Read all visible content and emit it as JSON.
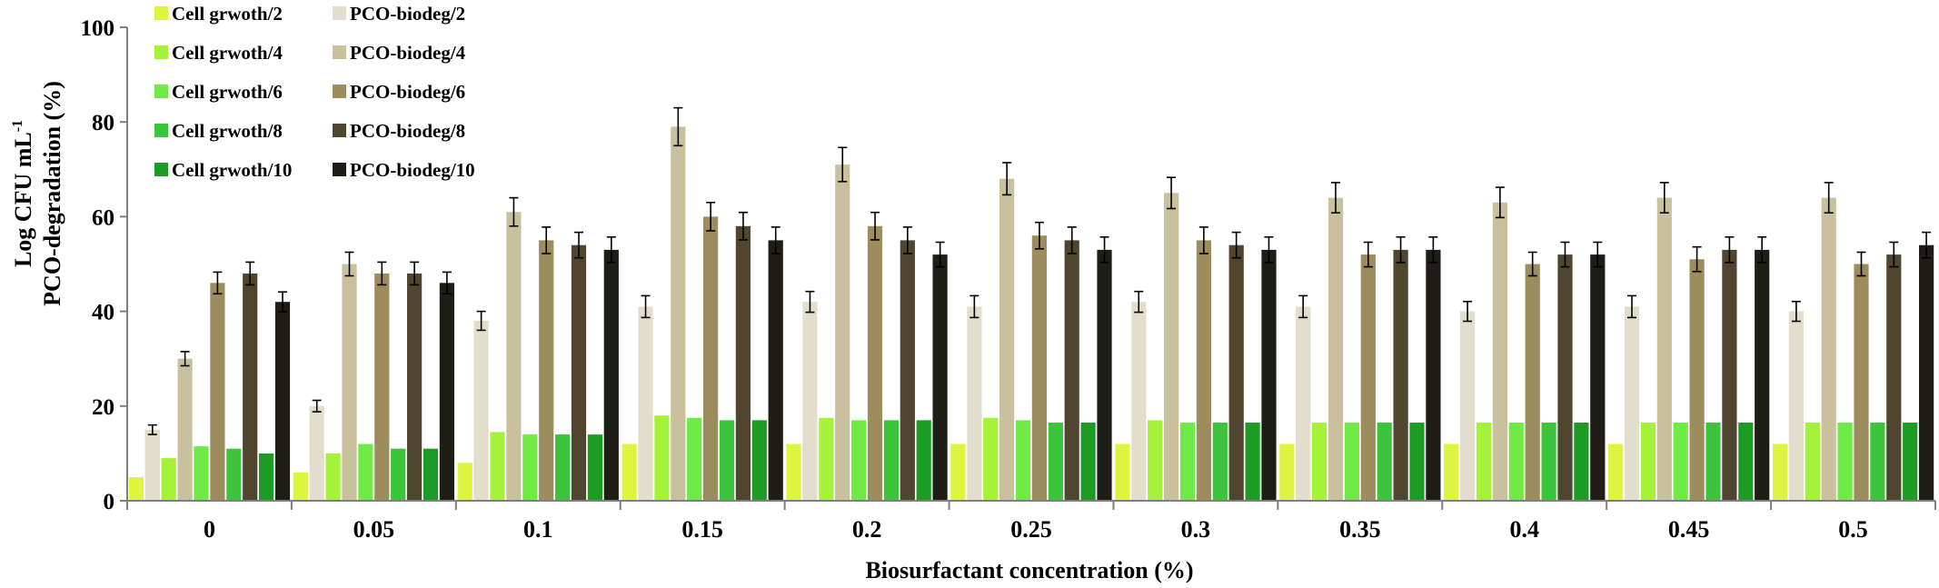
{
  "chart_data": {
    "type": "bar",
    "title": "",
    "xlabel": "Biosurfactant concentration (%)",
    "ylabel_line1": "Log CFU mL",
    "ylabel_superscript": "-1",
    "ylabel_line2": "PCO-degradation (%)",
    "ylim": [
      0,
      100
    ],
    "yticks": [
      "0",
      "20",
      "40",
      "60",
      "80",
      "100"
    ],
    "categories": [
      "0",
      "0.05",
      "0.1",
      "0.15",
      "0.2",
      "0.25",
      "0.3",
      "0.35",
      "0.4",
      "0.45",
      "0.5"
    ],
    "series": [
      {
        "name": "Cell grwoth/2",
        "color": "#DDF540",
        "values": [
          5,
          6,
          8,
          12,
          12,
          12,
          12,
          12,
          12,
          12,
          12
        ]
      },
      {
        "name": "PCO-biodeg/2",
        "color": "#E2DDCC",
        "values": [
          15,
          20,
          38,
          41,
          42,
          41,
          42,
          41,
          40,
          41,
          40
        ],
        "errors": [
          1,
          1.2,
          2,
          2.3,
          2.2,
          2.3,
          2.2,
          2.3,
          2.1,
          2.3,
          2.1
        ]
      },
      {
        "name": "Cell grwoth/4",
        "color": "#A6F23A",
        "values": [
          9,
          10,
          14.5,
          18,
          17.5,
          17.5,
          17,
          16.5,
          16.5,
          16.5,
          16.5
        ]
      },
      {
        "name": "PCO-biodeg/4",
        "color": "#C9C19E",
        "values": [
          30,
          50,
          61,
          79,
          71,
          68,
          65,
          64,
          63,
          64,
          64
        ],
        "errors": [
          1.5,
          2.5,
          3,
          4,
          3.6,
          3.4,
          3.3,
          3.2,
          3.2,
          3.2,
          3.2
        ]
      },
      {
        "name": "Cell grwoth/6",
        "color": "#70EA46",
        "values": [
          11.5,
          12,
          14,
          17.5,
          17,
          17,
          16.5,
          16.5,
          16.5,
          16.5,
          16.5
        ]
      },
      {
        "name": "PCO-biodeg/6",
        "color": "#9C8C5E",
        "values": [
          46,
          48,
          55,
          60,
          58,
          56,
          55,
          52,
          50,
          51,
          50
        ],
        "errors": [
          2.3,
          2.4,
          2.8,
          3,
          2.9,
          2.8,
          2.8,
          2.6,
          2.5,
          2.6,
          2.5
        ]
      },
      {
        "name": "Cell grwoth/8",
        "color": "#3CC43C",
        "values": [
          11,
          11,
          14,
          17,
          17,
          16.5,
          16.5,
          16.5,
          16.5,
          16.5,
          16.5
        ]
      },
      {
        "name": "PCO-biodeg/8",
        "color": "#50452E",
        "values": [
          48,
          48,
          54,
          58,
          55,
          55,
          54,
          53,
          52,
          53,
          52
        ],
        "errors": [
          2.4,
          2.4,
          2.7,
          2.9,
          2.8,
          2.8,
          2.7,
          2.7,
          2.6,
          2.7,
          2.6
        ]
      },
      {
        "name": "Cell grwoth/10",
        "color": "#1C9C24",
        "values": [
          10,
          11,
          14,
          17,
          17,
          16.5,
          16.5,
          16.5,
          16.5,
          16.5,
          16.5
        ]
      },
      {
        "name": "PCO-biodeg/10",
        "color": "#1E1E16",
        "values": [
          42,
          46,
          53,
          55,
          52,
          53,
          53,
          53,
          52,
          53,
          54
        ],
        "errors": [
          2.1,
          2.3,
          2.7,
          2.8,
          2.6,
          2.7,
          2.7,
          2.7,
          2.6,
          2.7,
          2.7
        ]
      }
    ],
    "legend": {
      "placement": "top-left",
      "columns": [
        [
          "Cell grwoth/2",
          "Cell grwoth/4",
          "Cell grwoth/6",
          "Cell grwoth/8",
          "Cell grwoth/10"
        ],
        [
          "PCO-biodeg/2",
          "PCO-biodeg/4",
          "PCO-biodeg/6",
          "PCO-biodeg/8",
          "PCO-biodeg/10"
        ]
      ]
    },
    "grid": false,
    "error_bars": true
  }
}
